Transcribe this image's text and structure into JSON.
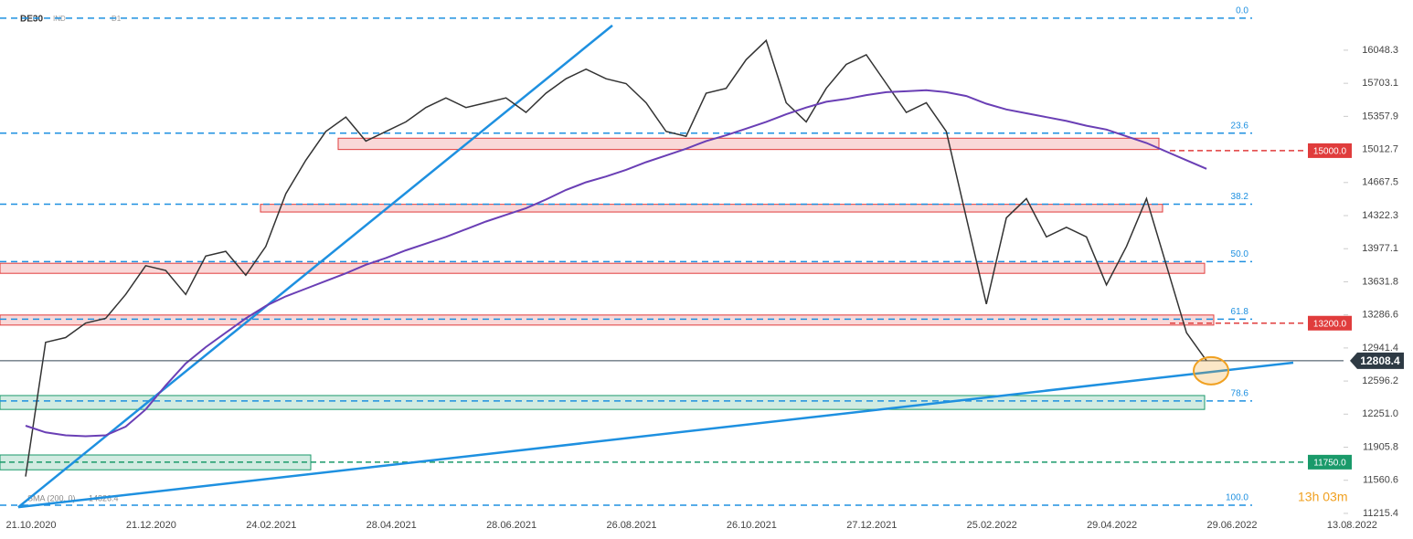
{
  "header": {
    "symbol": "DE30",
    "market": "IND",
    "interval": "D1",
    "timer": "13h 03m"
  },
  "chart_data": {
    "type": "line",
    "categories": [
      "21.10.2020",
      null,
      null,
      null,
      null,
      null,
      "21.12.2020",
      null,
      null,
      null,
      null,
      null,
      "24.02.2021",
      null,
      null,
      null,
      null,
      null,
      "28.04.2021",
      null,
      null,
      null,
      null,
      null,
      "28.06.2021",
      null,
      null,
      null,
      null,
      null,
      "26.08.2021",
      null,
      null,
      null,
      null,
      null,
      "26.10.2021",
      null,
      null,
      null,
      null,
      null,
      "27.12.2021",
      null,
      null,
      null,
      null,
      null,
      "25.02.2022",
      null,
      null,
      null,
      null,
      null,
      "29.04.2022",
      null,
      null,
      null,
      null,
      null,
      "29.06.2022",
      null,
      null,
      null,
      null,
      null,
      "13.08.2022"
    ],
    "series": [
      {
        "name": "DE30",
        "color": "#333333",
        "values": [
          11600,
          13000,
          13050,
          13200,
          13250,
          13500,
          13800,
          13750,
          13500,
          13900,
          13950,
          13700,
          14000,
          14550,
          14900,
          15200,
          15350,
          15100,
          15200,
          15300,
          15450,
          15550,
          15450,
          15500,
          15550,
          15400,
          15600,
          15750,
          15850,
          15750,
          15700,
          15500,
          15200,
          15150,
          15600,
          15650,
          15950,
          16150,
          15500,
          15300,
          15650,
          15900,
          16000,
          15700,
          15400,
          15500,
          15200,
          14300,
          13400,
          14300,
          14500,
          14100,
          14200,
          14100,
          13600,
          14000,
          14500,
          13800,
          13100,
          12808.4,
          null,
          null,
          null,
          null,
          null,
          null,
          null
        ]
      },
      {
        "name": "SMA (200, 0)",
        "color": "#6a3fb5",
        "legend_value": 14826.4,
        "values": [
          12130,
          12060,
          12030,
          12020,
          12030,
          12120,
          12300,
          12550,
          12780,
          12950,
          13100,
          13250,
          13380,
          13480,
          13560,
          13640,
          13720,
          13810,
          13880,
          13960,
          14030,
          14100,
          14180,
          14260,
          14330,
          14400,
          14490,
          14590,
          14670,
          14730,
          14800,
          14880,
          14950,
          15020,
          15100,
          15160,
          15230,
          15300,
          15380,
          15450,
          15510,
          15540,
          15580,
          15610,
          15620,
          15630,
          15610,
          15570,
          15490,
          15430,
          15390,
          15350,
          15310,
          15260,
          15220,
          15150,
          15080,
          14990,
          14900,
          14810,
          null,
          null,
          null,
          null,
          null,
          null,
          null
        ]
      }
    ],
    "ylim": [
      11091,
      16572
    ],
    "yticks": [
      16048.3,
      15703.1,
      15357.9,
      15012.7,
      14667.5,
      14322.3,
      13977.1,
      13631.8,
      13286.6,
      12941.4,
      12596.2,
      {
        "value": 12251,
        "label": "12251.0"
      },
      11905.8,
      11560.6,
      11215.4
    ],
    "last_price": 12808.4,
    "fib_levels": [
      {
        "value": 16382,
        "label": "0.0"
      },
      {
        "value": 15183,
        "label": "23.6"
      },
      {
        "value": 14441,
        "label": "38.2"
      },
      {
        "value": 13842,
        "label": "50.0"
      },
      {
        "value": 13242,
        "label": "61.8"
      },
      {
        "value": 12388,
        "label": "78.6"
      },
      {
        "value": 11301,
        "label": "100.0"
      }
    ],
    "price_levels": [
      {
        "value": 15000,
        "label": "15000.0",
        "color": "#e03c3c"
      },
      {
        "value": 13200,
        "label": "13200.0",
        "color": "#e03c3c"
      },
      {
        "value": 11750,
        "label": "11750.0",
        "color": "#1a9a6a"
      }
    ],
    "zones": [
      {
        "values": [
          15012,
          15130
        ],
        "color": "#e03c3c"
      },
      {
        "values": [
          14360,
          14440
        ],
        "color": "#e03c3c"
      },
      {
        "values": [
          13720,
          13825
        ],
        "color": "#e03c3c"
      },
      {
        "values": [
          13180,
          13285
        ],
        "color": "#e03c3c"
      },
      {
        "values": [
          12300,
          12445
        ],
        "color": "#1a9a6a"
      },
      {
        "values": [
          11670,
          11825
        ],
        "color": "#1a9a6a"
      }
    ],
    "trendlines": [
      {
        "values": [
          11280,
          16306
        ],
        "color": "#1e90e0"
      },
      {
        "values": [
          11280,
          12788
        ],
        "color": "#1e90e0"
      }
    ]
  }
}
